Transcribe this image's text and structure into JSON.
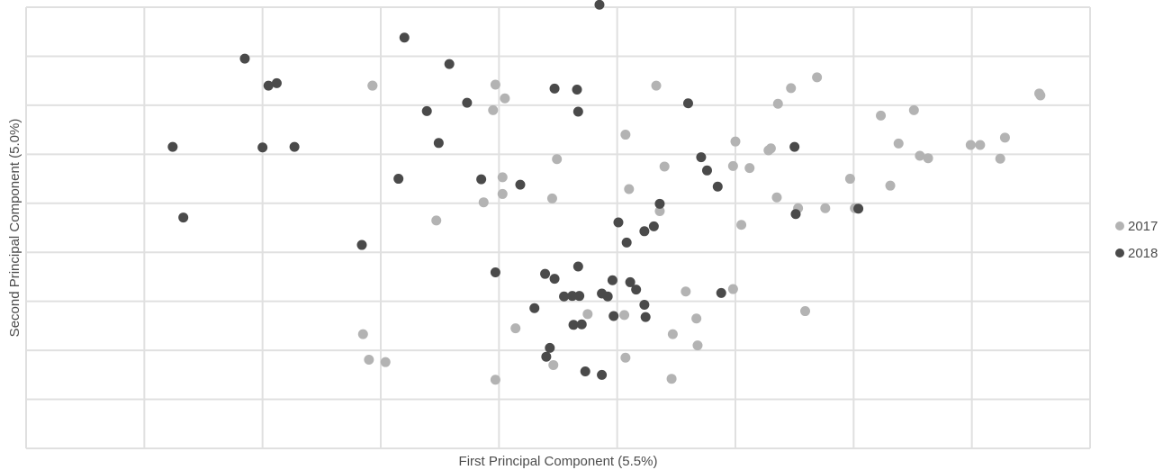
{
  "chart_data": {
    "type": "scatter",
    "title": "",
    "xlabel": "First Principal Component (5.5%)",
    "ylabel": "Second Principal Component (5.0%)",
    "xlim": [
      -5,
      4
    ],
    "ylim": [
      -4.5,
      4.5
    ],
    "grid": true,
    "legend_position": "right",
    "colors": {
      "2017": "#b3b3b3",
      "2018": "#4a4a4a"
    },
    "series": [
      {
        "name": "2017",
        "points": [
          [
            -2.15,
            -2.17
          ],
          [
            -2.1,
            -2.69
          ],
          [
            -1.96,
            -2.74
          ],
          [
            -2.07,
            2.9
          ],
          [
            -1.03,
            2.92
          ],
          [
            -1.05,
            2.4
          ],
          [
            -0.95,
            2.64
          ],
          [
            -0.97,
            1.03
          ],
          [
            -0.97,
            0.69
          ],
          [
            -1.13,
            0.52
          ],
          [
            -1.53,
            0.15
          ],
          [
            -0.51,
            1.4
          ],
          [
            -0.55,
            0.6
          ],
          [
            -0.86,
            -2.05
          ],
          [
            -0.54,
            -2.8
          ],
          [
            -1.03,
            -3.1
          ],
          [
            -0.25,
            -1.76
          ],
          [
            0.06,
            -1.78
          ],
          [
            0.07,
            -2.65
          ],
          [
            0.07,
            1.9
          ],
          [
            0.1,
            0.79
          ],
          [
            0.33,
            2.9
          ],
          [
            0.36,
            0.34
          ],
          [
            0.4,
            1.25
          ],
          [
            0.47,
            -2.17
          ],
          [
            0.46,
            -3.08
          ],
          [
            0.58,
            -1.3
          ],
          [
            0.67,
            -1.85
          ],
          [
            0.68,
            -2.4
          ],
          [
            0.98,
            1.26
          ],
          [
            1.0,
            1.76
          ],
          [
            0.98,
            -1.25
          ],
          [
            1.05,
            0.06
          ],
          [
            1.12,
            1.22
          ],
          [
            1.28,
            1.58
          ],
          [
            1.3,
            1.62
          ],
          [
            1.35,
            0.62
          ],
          [
            1.36,
            2.53
          ],
          [
            1.47,
            2.85
          ],
          [
            1.53,
            0.4
          ],
          [
            1.69,
            3.07
          ],
          [
            1.59,
            -1.7
          ],
          [
            1.76,
            0.4
          ],
          [
            1.97,
            1.0
          ],
          [
            2.01,
            0.4
          ],
          [
            2.23,
            2.29
          ],
          [
            2.31,
            0.86
          ],
          [
            2.38,
            1.72
          ],
          [
            2.51,
            2.4
          ],
          [
            2.56,
            1.47
          ],
          [
            2.63,
            1.42
          ],
          [
            2.99,
            1.69
          ],
          [
            3.07,
            1.69
          ],
          [
            3.24,
            1.41
          ],
          [
            3.28,
            1.84
          ],
          [
            3.57,
            2.74
          ],
          [
            3.58,
            2.7
          ],
          [
            -2.07,
            2.9
          ]
        ]
      },
      {
        "name": "2018",
        "points": [
          [
            -3.76,
            1.65
          ],
          [
            -3.67,
            0.21
          ],
          [
            -3.15,
            3.45
          ],
          [
            -3.0,
            1.64
          ],
          [
            -2.95,
            2.9
          ],
          [
            -2.88,
            2.95
          ],
          [
            -2.73,
            1.65
          ],
          [
            -2.16,
            -0.35
          ],
          [
            -1.85,
            1.0
          ],
          [
            -1.8,
            3.88
          ],
          [
            -1.61,
            2.38
          ],
          [
            -1.51,
            1.73
          ],
          [
            -1.27,
            2.55
          ],
          [
            -1.15,
            0.99
          ],
          [
            -1.03,
            -0.91
          ],
          [
            -1.42,
            3.34
          ],
          [
            -0.15,
            4.55
          ],
          [
            -0.82,
            0.88
          ],
          [
            -0.53,
            2.84
          ],
          [
            -0.34,
            2.82
          ],
          [
            -0.33,
            2.37
          ],
          [
            0.6,
            2.54
          ],
          [
            0.71,
            1.44
          ],
          [
            0.76,
            1.17
          ],
          [
            0.88,
            -1.33
          ],
          [
            1.5,
            1.65
          ],
          [
            1.51,
            0.28
          ],
          [
            2.04,
            0.39
          ],
          [
            -0.27,
            -2.93
          ],
          [
            -0.13,
            -3.0
          ],
          [
            -0.03,
            -1.8
          ],
          [
            -0.32,
            -1.39
          ],
          [
            -0.6,
            -2.63
          ],
          [
            -0.57,
            -2.45
          ],
          [
            -0.45,
            -1.4
          ],
          [
            -0.38,
            -1.39
          ],
          [
            -0.3,
            -1.97
          ],
          [
            -0.04,
            -1.07
          ],
          [
            -0.37,
            -1.98
          ],
          [
            -0.33,
            -0.79
          ],
          [
            -0.53,
            -1.04
          ],
          [
            -0.61,
            -0.94
          ],
          [
            -0.7,
            -1.64
          ],
          [
            0.23,
            -1.57
          ],
          [
            0.16,
            -1.26
          ],
          [
            -0.13,
            -1.34
          ],
          [
            0.11,
            -1.11
          ],
          [
            0.23,
            -0.07
          ],
          [
            0.31,
            0.03
          ],
          [
            0.36,
            0.49
          ],
          [
            0.85,
            0.84
          ],
          [
            -0.08,
            -1.4
          ],
          [
            0.24,
            -1.82
          ],
          [
            0.08,
            -0.3
          ],
          [
            0.01,
            0.11
          ]
        ]
      }
    ]
  }
}
